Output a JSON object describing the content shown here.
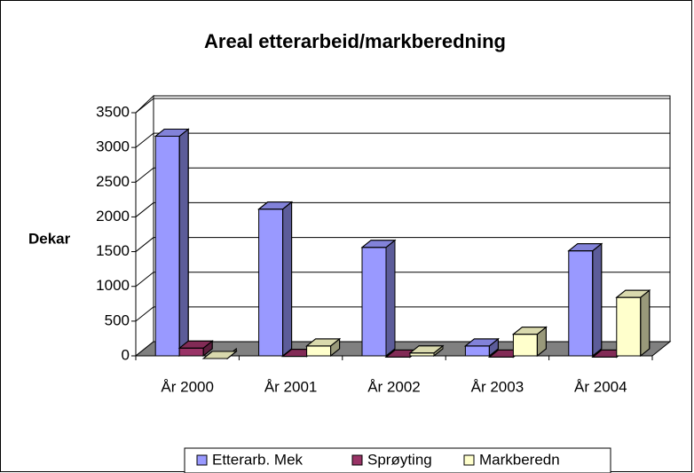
{
  "chart_data": {
    "type": "bar3d",
    "title": "Areal etterarbeid/markberedning",
    "y_label": "Dekar",
    "categories": [
      "År 2000",
      "År 2001",
      "År 2002",
      "År 2003",
      "År 2004"
    ],
    "series": [
      {
        "name": "Etterarb. Mek",
        "color": "#9999ff",
        "values": [
          3200,
          2150,
          1600,
          180,
          1550
        ]
      },
      {
        "name": "Sprøyting",
        "color": "#993366",
        "values": [
          150,
          30,
          20,
          20,
          20
        ]
      },
      {
        "name": "Markberedn",
        "color": "#ffffcc",
        "values": [
          0,
          180,
          80,
          350,
          880
        ]
      }
    ],
    "ylim": [
      0,
      3500
    ],
    "yticks": [
      0,
      500,
      1000,
      1500,
      2000,
      2500,
      3000,
      3500
    ],
    "grid": true,
    "legend": "bottom"
  }
}
